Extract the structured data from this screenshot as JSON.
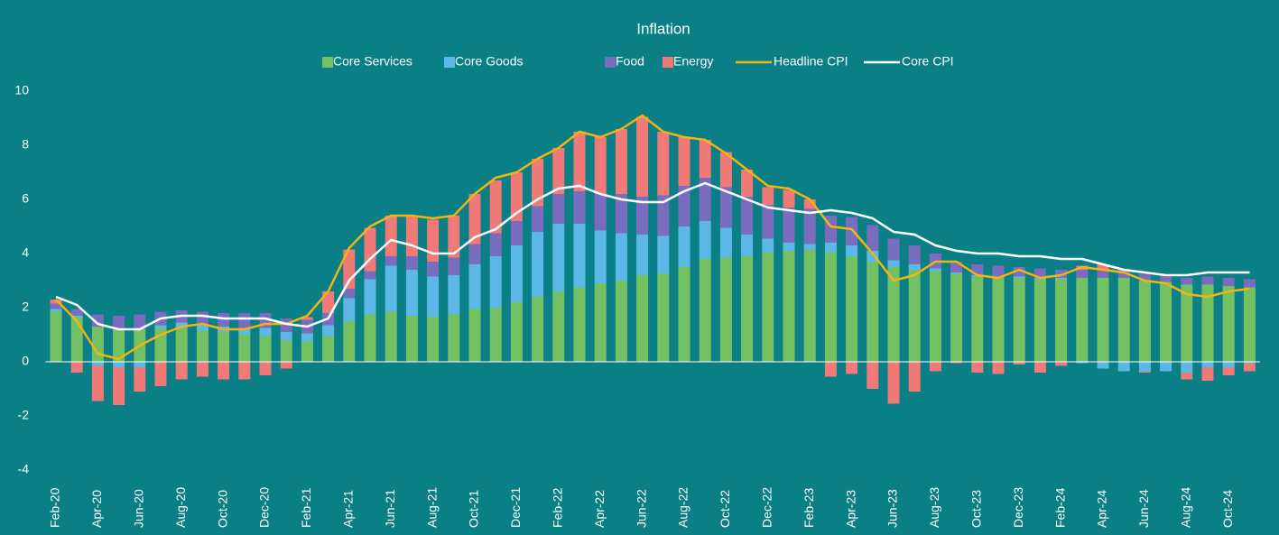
{
  "chart_data": {
    "type": "bar",
    "stacked": true,
    "title": "Inflation",
    "categories": [
      "Feb-20",
      null,
      "Apr-20",
      null,
      "Jun-20",
      null,
      "Aug-20",
      null,
      "Oct-20",
      null,
      "Dec-20",
      null,
      "Feb-21",
      null,
      "Apr-21",
      null,
      "Jun-21",
      null,
      "Aug-21",
      null,
      "Oct-21",
      null,
      "Dec-21",
      null,
      "Feb-22",
      null,
      "Apr-22",
      null,
      "Jun-22",
      null,
      "Aug-22",
      null,
      "Oct-22",
      null,
      "Dec-22",
      null,
      "Feb-23",
      null,
      "Apr-23",
      null,
      "Jun-23",
      null,
      "Aug-23",
      null,
      "Oct-23",
      null,
      "Dec-23",
      null,
      "Feb-24",
      null,
      "Apr-24",
      null,
      "Jun-24",
      null,
      "Aug-24",
      null,
      "Oct-24",
      null
    ],
    "series": [
      {
        "name": "Core Services",
        "type": "bar",
        "color": "#74c163",
        "values": [
          1.85,
          1.65,
          1.3,
          1.2,
          1.2,
          1.25,
          1.25,
          1.15,
          1.1,
          1.0,
          0.95,
          0.8,
          0.75,
          0.95,
          1.5,
          1.75,
          1.85,
          1.7,
          1.65,
          1.75,
          1.95,
          2.0,
          2.2,
          2.4,
          2.6,
          2.75,
          2.9,
          3.0,
          3.2,
          3.25,
          3.5,
          3.8,
          3.85,
          3.9,
          4.05,
          4.1,
          4.15,
          4.05,
          3.9,
          3.7,
          3.5,
          3.4,
          3.35,
          3.25,
          3.15,
          3.1,
          3.1,
          3.05,
          3.05,
          3.1,
          3.1,
          3.1,
          3.0,
          2.95,
          2.85,
          2.85,
          2.8,
          2.75
        ]
      },
      {
        "name": "Core Goods",
        "type": "bar",
        "color": "#5cb8e6",
        "values": [
          0.1,
          0.05,
          -0.15,
          -0.2,
          -0.2,
          0.1,
          0.2,
          0.2,
          0.2,
          0.25,
          0.3,
          0.3,
          0.3,
          0.4,
          0.85,
          1.3,
          1.7,
          1.7,
          1.5,
          1.45,
          1.65,
          1.9,
          2.1,
          2.4,
          2.5,
          2.35,
          1.95,
          1.75,
          1.5,
          1.4,
          1.5,
          1.4,
          1.1,
          0.8,
          0.5,
          0.3,
          0.2,
          0.35,
          0.4,
          0.4,
          0.25,
          0.2,
          0.1,
          0.05,
          0.05,
          0.05,
          0.05,
          0.05,
          0.05,
          -0.05,
          -0.25,
          -0.35,
          -0.35,
          -0.35,
          -0.4,
          -0.2,
          -0.2,
          -0.05
        ]
      },
      {
        "name": "Food",
        "type": "bar",
        "color": "#7a6cbf",
        "values": [
          0.2,
          0.25,
          0.45,
          0.5,
          0.55,
          0.5,
          0.45,
          0.5,
          0.5,
          0.55,
          0.55,
          0.5,
          0.5,
          0.45,
          0.35,
          0.3,
          0.35,
          0.5,
          0.55,
          0.65,
          0.75,
          0.85,
          0.9,
          0.95,
          1.1,
          1.2,
          1.35,
          1.45,
          1.4,
          1.5,
          1.5,
          1.6,
          1.5,
          1.4,
          1.25,
          1.3,
          1.3,
          1.0,
          1.05,
          0.95,
          0.8,
          0.7,
          0.55,
          0.4,
          0.4,
          0.4,
          0.35,
          0.35,
          0.3,
          0.3,
          0.3,
          0.3,
          0.25,
          0.25,
          0.25,
          0.3,
          0.3,
          0.3
        ]
      },
      {
        "name": "Energy",
        "type": "bar",
        "color": "#ef7a78",
        "values": [
          0.15,
          -0.4,
          -1.3,
          -1.4,
          -0.9,
          -0.9,
          -0.65,
          -0.55,
          -0.65,
          -0.65,
          -0.5,
          -0.25,
          0.1,
          0.8,
          1.45,
          1.6,
          1.5,
          1.5,
          1.55,
          1.55,
          1.85,
          1.95,
          1.8,
          1.75,
          1.7,
          2.2,
          2.1,
          2.4,
          2.95,
          2.35,
          1.8,
          1.4,
          1.3,
          1.0,
          0.65,
          0.65,
          0.35,
          -0.55,
          -0.45,
          -1.0,
          -1.55,
          -1.1,
          -0.35,
          -0.05,
          -0.4,
          -0.45,
          -0.1,
          -0.4,
          -0.15,
          0.15,
          0.2,
          0.0,
          -0.05,
          0.0,
          -0.25,
          -0.5,
          -0.3,
          -0.3
        ]
      },
      {
        "name": "Headline CPI",
        "type": "line",
        "color": "#f2b50f",
        "values": [
          2.3,
          1.5,
          0.3,
          0.1,
          0.6,
          1.0,
          1.3,
          1.4,
          1.2,
          1.2,
          1.4,
          1.4,
          1.7,
          2.6,
          4.2,
          5.0,
          5.4,
          5.4,
          5.3,
          5.4,
          6.2,
          6.8,
          7.0,
          7.5,
          7.9,
          8.5,
          8.3,
          8.6,
          9.1,
          8.5,
          8.3,
          8.2,
          7.7,
          7.1,
          6.5,
          6.4,
          6.0,
          5.0,
          4.9,
          4.0,
          3.0,
          3.2,
          3.7,
          3.7,
          3.2,
          3.1,
          3.4,
          3.1,
          3.2,
          3.5,
          3.4,
          3.3,
          3.0,
          2.9,
          2.5,
          2.4,
          2.6,
          2.7
        ]
      },
      {
        "name": "Core CPI",
        "type": "line",
        "color": "#ffffff",
        "values": [
          2.4,
          2.1,
          1.4,
          1.2,
          1.2,
          1.6,
          1.7,
          1.7,
          1.6,
          1.6,
          1.6,
          1.4,
          1.3,
          1.6,
          3.0,
          3.8,
          4.5,
          4.3,
          4.0,
          4.0,
          4.6,
          4.9,
          5.5,
          6.0,
          6.4,
          6.5,
          6.2,
          6.0,
          5.9,
          5.9,
          6.3,
          6.6,
          6.3,
          6.0,
          5.7,
          5.6,
          5.5,
          5.6,
          5.5,
          5.3,
          4.8,
          4.7,
          4.3,
          4.1,
          4.0,
          4.0,
          3.9,
          3.9,
          3.8,
          3.8,
          3.6,
          3.4,
          3.3,
          3.2,
          3.2,
          3.3,
          3.3,
          3.3
        ]
      }
    ],
    "ylim": [
      -4,
      10
    ],
    "yticks": [
      -4,
      -2,
      0,
      2,
      4,
      6,
      8,
      10
    ],
    "grid": false,
    "legend": "top"
  }
}
